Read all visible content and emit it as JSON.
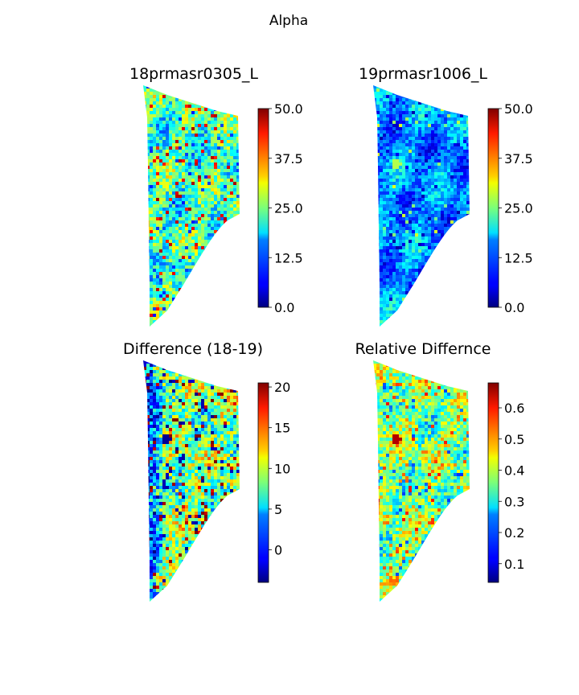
{
  "figure": {
    "suptitle": "Alpha"
  },
  "chart_data": [
    {
      "type": "heatmap",
      "title": "18prmasr0305_L",
      "colormap": "jet",
      "vmin": 0,
      "vmax": 50,
      "colorbar_ticks": [
        0.0,
        12.5,
        25.0,
        37.5,
        50.0
      ],
      "colorbar_tick_labels": [
        "0.0",
        "12.5",
        "25.0",
        "37.5",
        "50.0"
      ],
      "typical_value": 22,
      "axes": "off"
    },
    {
      "type": "heatmap",
      "title": "19prmasr1006_L",
      "colormap": "jet",
      "vmin": 0,
      "vmax": 50,
      "colorbar_ticks": [
        0.0,
        12.5,
        25.0,
        37.5,
        50.0
      ],
      "colorbar_tick_labels": [
        "0.0",
        "12.5",
        "25.0",
        "37.5",
        "50.0"
      ],
      "typical_value": 13,
      "axes": "off"
    },
    {
      "type": "heatmap",
      "title": "Difference (18-19)",
      "colormap": "jet",
      "vmin": -4,
      "vmax": 20.5,
      "colorbar_ticks": [
        0,
        5,
        10,
        15,
        20
      ],
      "colorbar_tick_labels": [
        "0",
        "5",
        "10",
        "15",
        "20"
      ],
      "typical_value": 9,
      "axes": "off"
    },
    {
      "type": "heatmap",
      "title": "Relative Differnce",
      "colormap": "jet",
      "vmin": 0.04,
      "vmax": 0.68,
      "colorbar_ticks": [
        0.1,
        0.2,
        0.3,
        0.4,
        0.5,
        0.6
      ],
      "colorbar_tick_labels": [
        "0.1",
        "0.2",
        "0.3",
        "0.4",
        "0.5",
        "0.6"
      ],
      "typical_value": 0.36,
      "axes": "off"
    }
  ]
}
